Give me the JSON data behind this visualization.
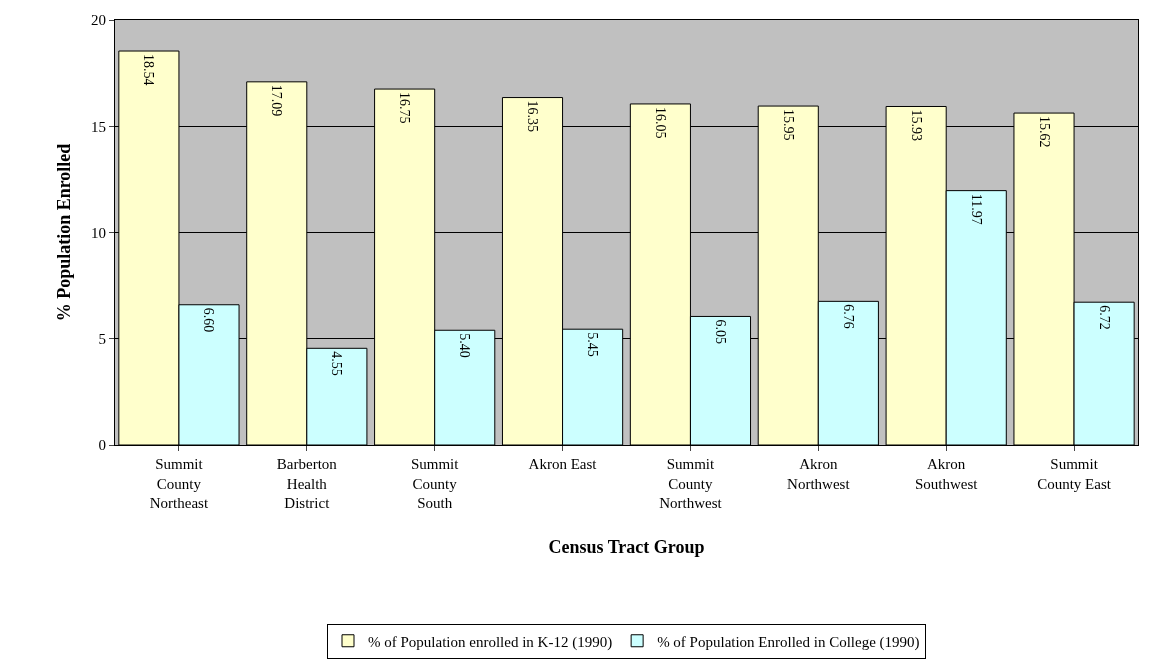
{
  "chart_data": {
    "type": "bar",
    "xlabel": "Census Tract Group",
    "ylabel": "% Population Enrolled",
    "categories": [
      "Summit County Northeast",
      "Barberton Health District",
      "Summit County South",
      "Akron East",
      "Summit County Northwest",
      "Akron Northwest",
      "Akron Southwest",
      "Summit County East"
    ],
    "series": [
      {
        "name": "% of Population enrolled in K-12 (1990)",
        "color": "#ffffcc",
        "values": [
          18.54,
          17.09,
          16.75,
          16.35,
          16.05,
          15.95,
          15.93,
          15.62
        ],
        "value_labels": [
          "18.54",
          "17.09",
          "16.75",
          "16.35",
          "16.05",
          "15.95",
          "15.93",
          "15.62"
        ]
      },
      {
        "name": "% of Population Enrolled in College (1990)",
        "color": "#ccffff",
        "values": [
          6.6,
          4.55,
          5.4,
          5.45,
          6.05,
          6.76,
          11.97,
          6.72
        ],
        "value_labels": [
          "6.60",
          "4.55",
          "5.40",
          "5.45",
          "6.05",
          "6.76",
          "11.97",
          "6.72"
        ]
      }
    ],
    "ylim": [
      0,
      20
    ],
    "yticks": [
      0,
      5,
      10,
      15,
      20
    ],
    "grid": "y",
    "legend": "bottom"
  }
}
